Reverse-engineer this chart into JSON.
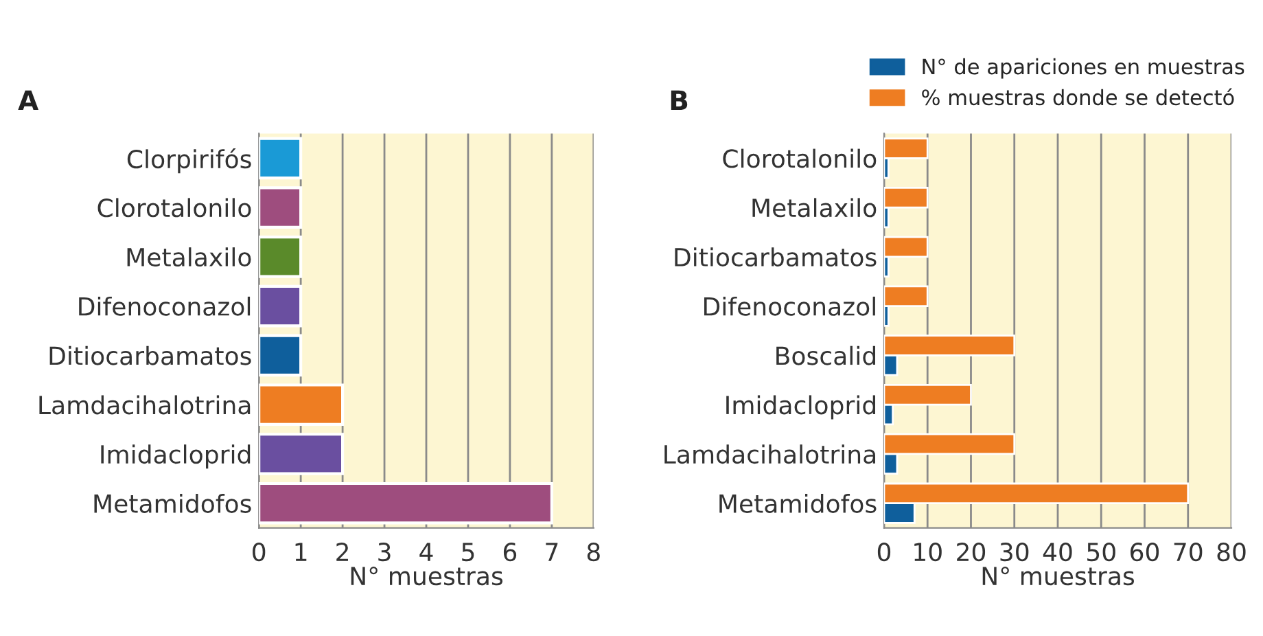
{
  "chart_data": [
    {
      "type": "bar",
      "title": "A",
      "orientation": "horizontal",
      "xlabel": "N° muestras",
      "categories": [
        "Clorpirifós",
        "Clorotalonilo",
        "Metalaxilo",
        "Difenoconazol",
        "Ditiocarbamatos",
        "Lamdacihalotrina",
        "Imidacloprid",
        "Metamidofos"
      ],
      "values": [
        1,
        1,
        1,
        1,
        1,
        2,
        2,
        7
      ],
      "colors": [
        "#1a9ad6",
        "#9e4d7e",
        "#5a8a2a",
        "#6a4fa0",
        "#0f5f9c",
        "#ee7d22",
        "#6a4fa0",
        "#9e4d7e"
      ],
      "xlim": [
        0,
        8
      ],
      "xticks": [
        0,
        1,
        2,
        3,
        4,
        5,
        6,
        7,
        8
      ],
      "grid": "x",
      "legend": false
    },
    {
      "type": "bar",
      "title": "B",
      "orientation": "horizontal",
      "xlabel": "N° muestras",
      "categories": [
        "Clorotalonilo",
        "Metalaxilo",
        "Ditiocarbamatos",
        "Difenoconazol",
        "Boscalid",
        "Imidacloprid",
        "Lamdacihalotrina",
        "Metamidofos"
      ],
      "series": [
        {
          "name": "N° de apariciones en muestras",
          "color": "#0f5f9c",
          "values": [
            1,
            1,
            1,
            1,
            3,
            2,
            3,
            7
          ]
        },
        {
          "name": "% muestras donde se detectó",
          "color": "#ee7d22",
          "values": [
            10,
            10,
            10,
            10,
            30,
            20,
            30,
            70
          ]
        }
      ],
      "xlim": [
        0,
        80
      ],
      "xticks": [
        0,
        10,
        20,
        30,
        40,
        50,
        60,
        70,
        80
      ],
      "grid": "x",
      "legend": "top"
    }
  ]
}
